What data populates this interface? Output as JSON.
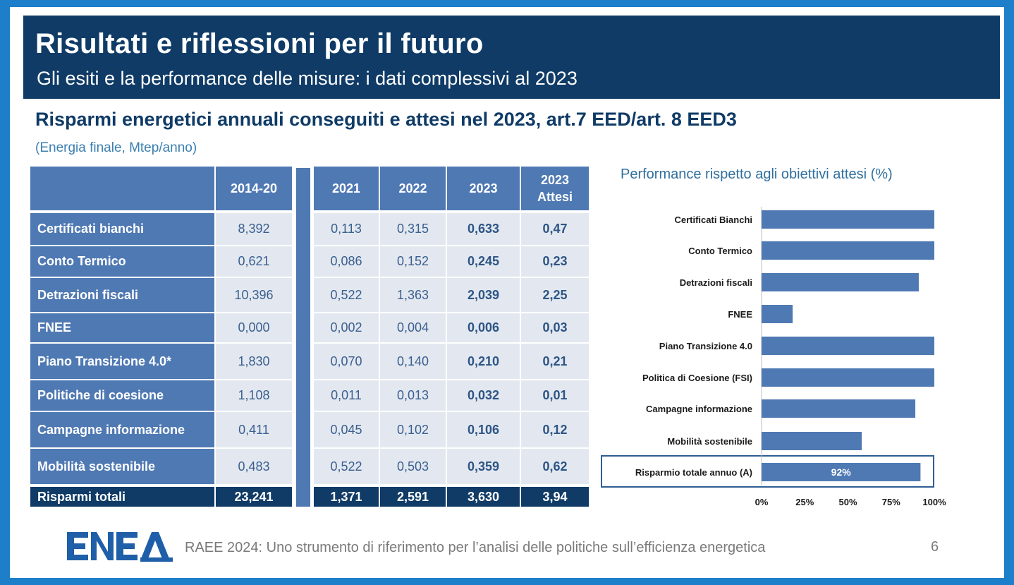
{
  "slide": {
    "title": "Risultati e riflessioni per il futuro",
    "subtitle": "Gli esiti e la performance delle misure: i dati complessivi al 2023",
    "heading": "Risparmi energetici annuali conseguiti e attesi nel 2023, art.7 EED/art. 8 EED3",
    "unit": "(Energia finale, Mtep/anno)",
    "footer": "RAEE 2024: Uno strumento di riferimento per l’analisi delle politiche sull’efficienza energetica",
    "page_number": "6",
    "logo_text": "ENEA"
  },
  "table": {
    "headers": [
      "2014-20",
      "2021",
      "2022",
      "2023",
      "2023 Attesi"
    ],
    "rows": [
      {
        "label": "Certificati bianchi",
        "values": [
          "8,392",
          "0,113",
          "0,315",
          "0,633",
          "0,47"
        ]
      },
      {
        "label": "Conto Termico",
        "values": [
          "0,621",
          "0,086",
          "0,152",
          "0,245",
          "0,23"
        ]
      },
      {
        "label": "Detrazioni fiscali",
        "values": [
          "10,396",
          "0,522",
          "1,363",
          "2,039",
          "2,25"
        ]
      },
      {
        "label": "FNEE",
        "values": [
          "0,000",
          "0,002",
          "0,004",
          "0,006",
          "0,03"
        ]
      },
      {
        "label": "Piano Transizione 4.0*",
        "values": [
          "1,830",
          "0,070",
          "0,140",
          "0,210",
          "0,21"
        ]
      },
      {
        "label": "Politiche di coesione",
        "values": [
          "1,108",
          "0,011",
          "0,013",
          "0,032",
          "0,01"
        ]
      },
      {
        "label": "Campagne informazione",
        "values": [
          "0,411",
          "0,045",
          "0,102",
          "0,106",
          "0,12"
        ]
      },
      {
        "label": "Mobilità sostenibile",
        "values": [
          "0,483",
          "0,522",
          "0,503",
          "0,359",
          "0,62"
        ]
      }
    ],
    "total": {
      "label": "Risparmi totali",
      "values": [
        "23,241",
        "1,371",
        "2,591",
        "3,630",
        "3,94"
      ]
    }
  },
  "chart_data": {
    "type": "bar",
    "orientation": "horizontal",
    "title": "Performance rispetto agli obiettivi attesi (%)",
    "categories": [
      "Certificati Bianchi",
      "Conto Termico",
      "Detrazioni fiscali",
      "FNEE",
      "Piano Transizione 4.0",
      "Politica di Coesione (FSI)",
      "Campagne informazione",
      "Mobilità sostenibile",
      "Risparmio totale annuo (A)"
    ],
    "values": [
      100,
      100,
      91,
      18,
      100,
      100,
      89,
      58,
      92
    ],
    "xlim": [
      0,
      100
    ],
    "x_ticks": [
      "0%",
      "25%",
      "50%",
      "75%",
      "100%"
    ],
    "data_labels": {
      "Risparmio totale annuo (A)": "92%"
    },
    "highlighted_category": "Risparmio totale annuo (A)",
    "grid": false,
    "bar_color": "#4f79b3"
  }
}
